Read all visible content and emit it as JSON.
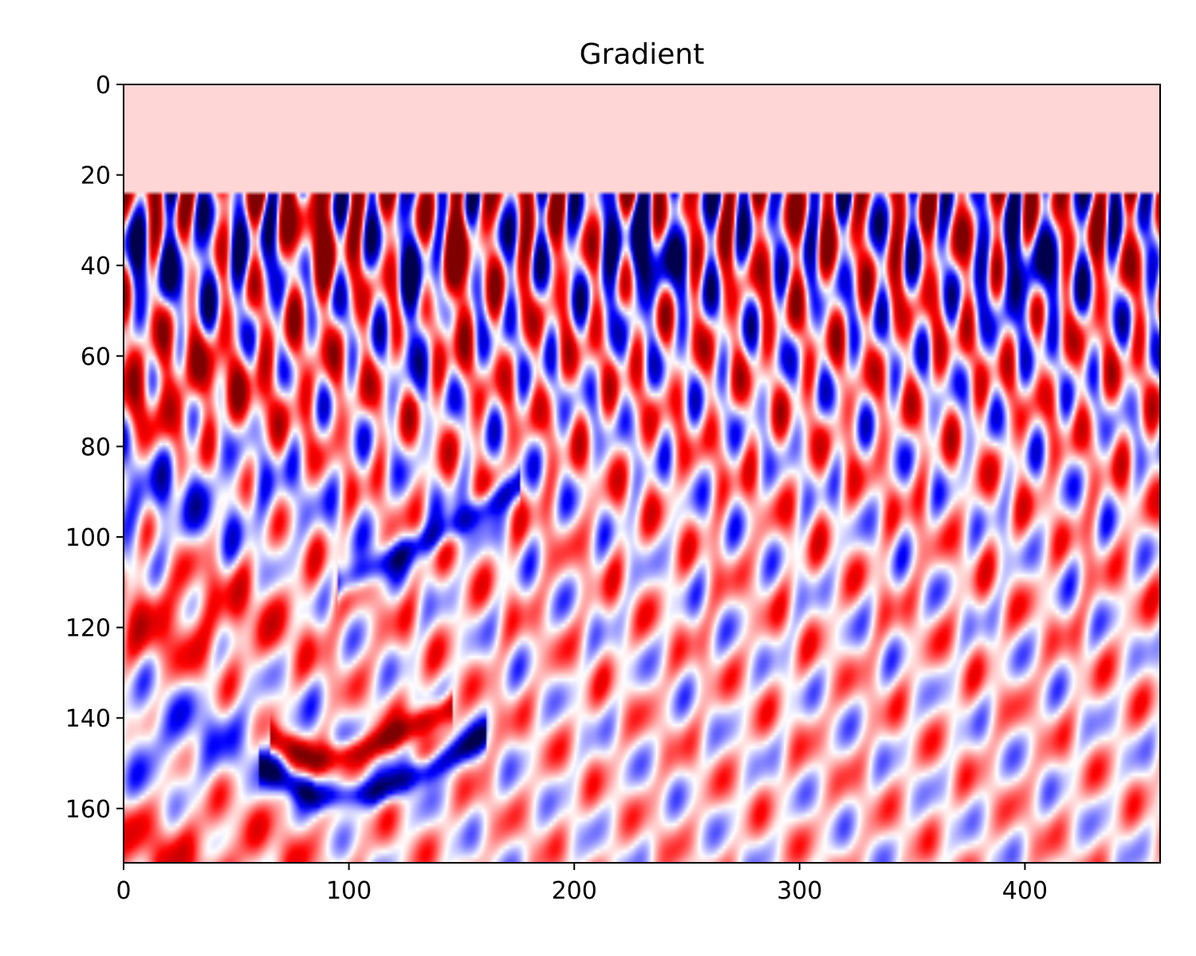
{
  "chart_data": {
    "type": "heatmap",
    "title": "Gradient",
    "xlabel": "",
    "ylabel": "",
    "colormap": "seismic",
    "colors": {
      "neg_strong": "#00004c",
      "neg": "#0000ff",
      "zero": "#ffffff",
      "pos": "#ff0000",
      "pos_strong": "#7f0000",
      "masked_top": "#ffd6d6"
    },
    "xlim": [
      0,
      460
    ],
    "ylim": [
      172,
      0
    ],
    "y_inverted": true,
    "grid": false,
    "legend": "none",
    "xticks": [
      0,
      100,
      200,
      300,
      400
    ],
    "xtick_labels": [
      "0",
      "100",
      "200",
      "300",
      "400"
    ],
    "yticks": [
      0,
      20,
      40,
      60,
      80,
      100,
      120,
      140,
      160
    ],
    "ytick_labels": [
      "0",
      "20",
      "40",
      "60",
      "80",
      "100",
      "120",
      "140",
      "160"
    ],
    "constant_band_depth": [
      0,
      24
    ],
    "features": [
      {
        "sign": "positive",
        "description": "strong red arc",
        "x": [
          65,
          85,
          105,
          125,
          145
        ],
        "y": [
          144,
          149,
          147,
          142,
          137
        ]
      },
      {
        "sign": "negative",
        "description": "blue arc below",
        "x": [
          60,
          85,
          110,
          135,
          160
        ],
        "y": [
          150,
          157,
          156,
          151,
          143
        ]
      },
      {
        "sign": "negative",
        "description": "blue band",
        "x": [
          95,
          120,
          150,
          175
        ],
        "y": [
          110,
          104,
          96,
          88
        ]
      },
      {
        "sign": "negative",
        "description": "near-surface blue patches",
        "x": [
          130,
          230,
          390,
          440
        ],
        "y": [
          35,
          45,
          42,
          50
        ]
      },
      {
        "sign": "positive",
        "description": "near-surface red patches",
        "x": [
          90,
          150,
          320,
          360
        ],
        "y": [
          35,
          40,
          35,
          35
        ]
      }
    ]
  }
}
